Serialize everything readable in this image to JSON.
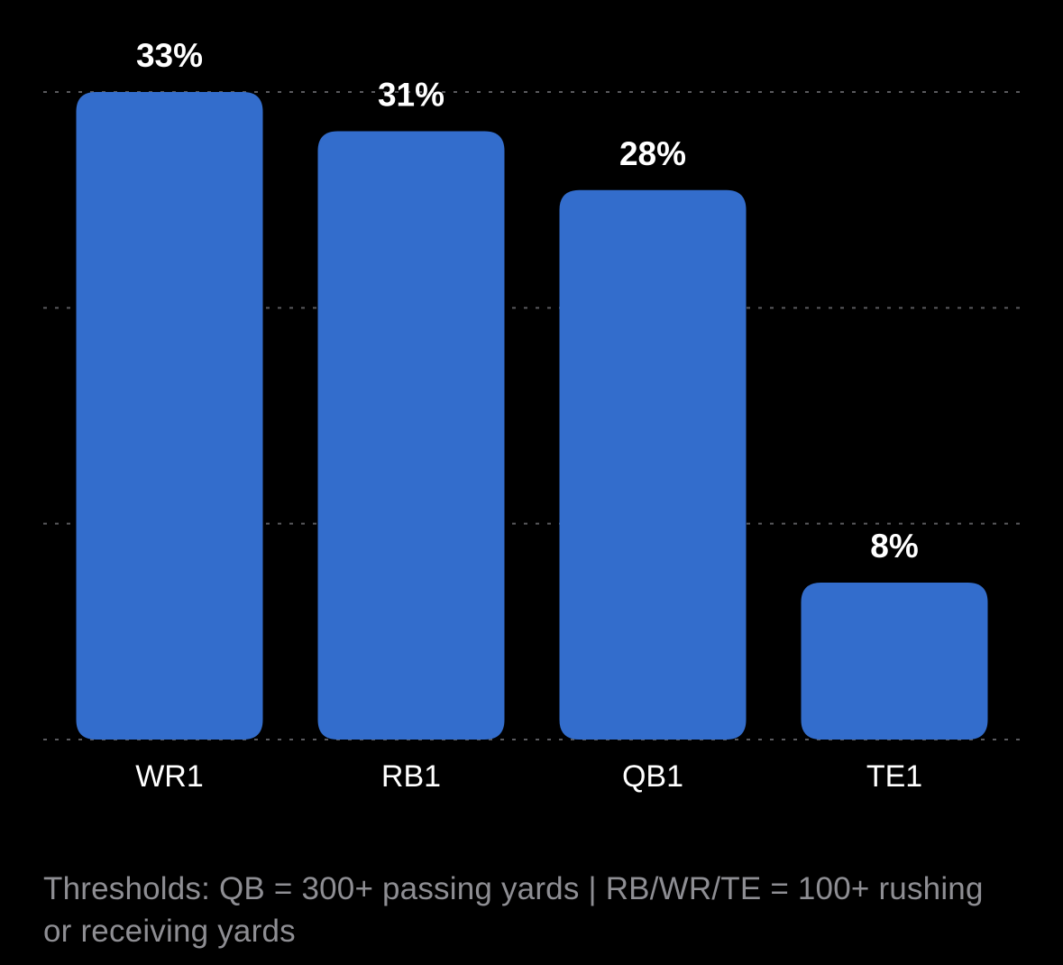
{
  "chart_data": {
    "type": "bar",
    "categories": [
      "WR1",
      "RB1",
      "QB1",
      "TE1"
    ],
    "values": [
      33,
      31,
      28,
      8
    ],
    "value_labels": [
      "33%",
      "31%",
      "28%",
      "8%"
    ],
    "title": "",
    "xlabel": "",
    "ylabel": "",
    "ylim": [
      0,
      33
    ],
    "grid": true,
    "grid_style": "dotted",
    "bar_color": "#336dcc",
    "label_color": "#ffffff",
    "grid_color": "#5a5a5e"
  },
  "footnote": "Thresholds: QB = 300+ passing yards | RB/WR/TE = 100+ rushing or receiving yards",
  "colors": {
    "background": "#000000",
    "footnote": "#8e8e93"
  }
}
